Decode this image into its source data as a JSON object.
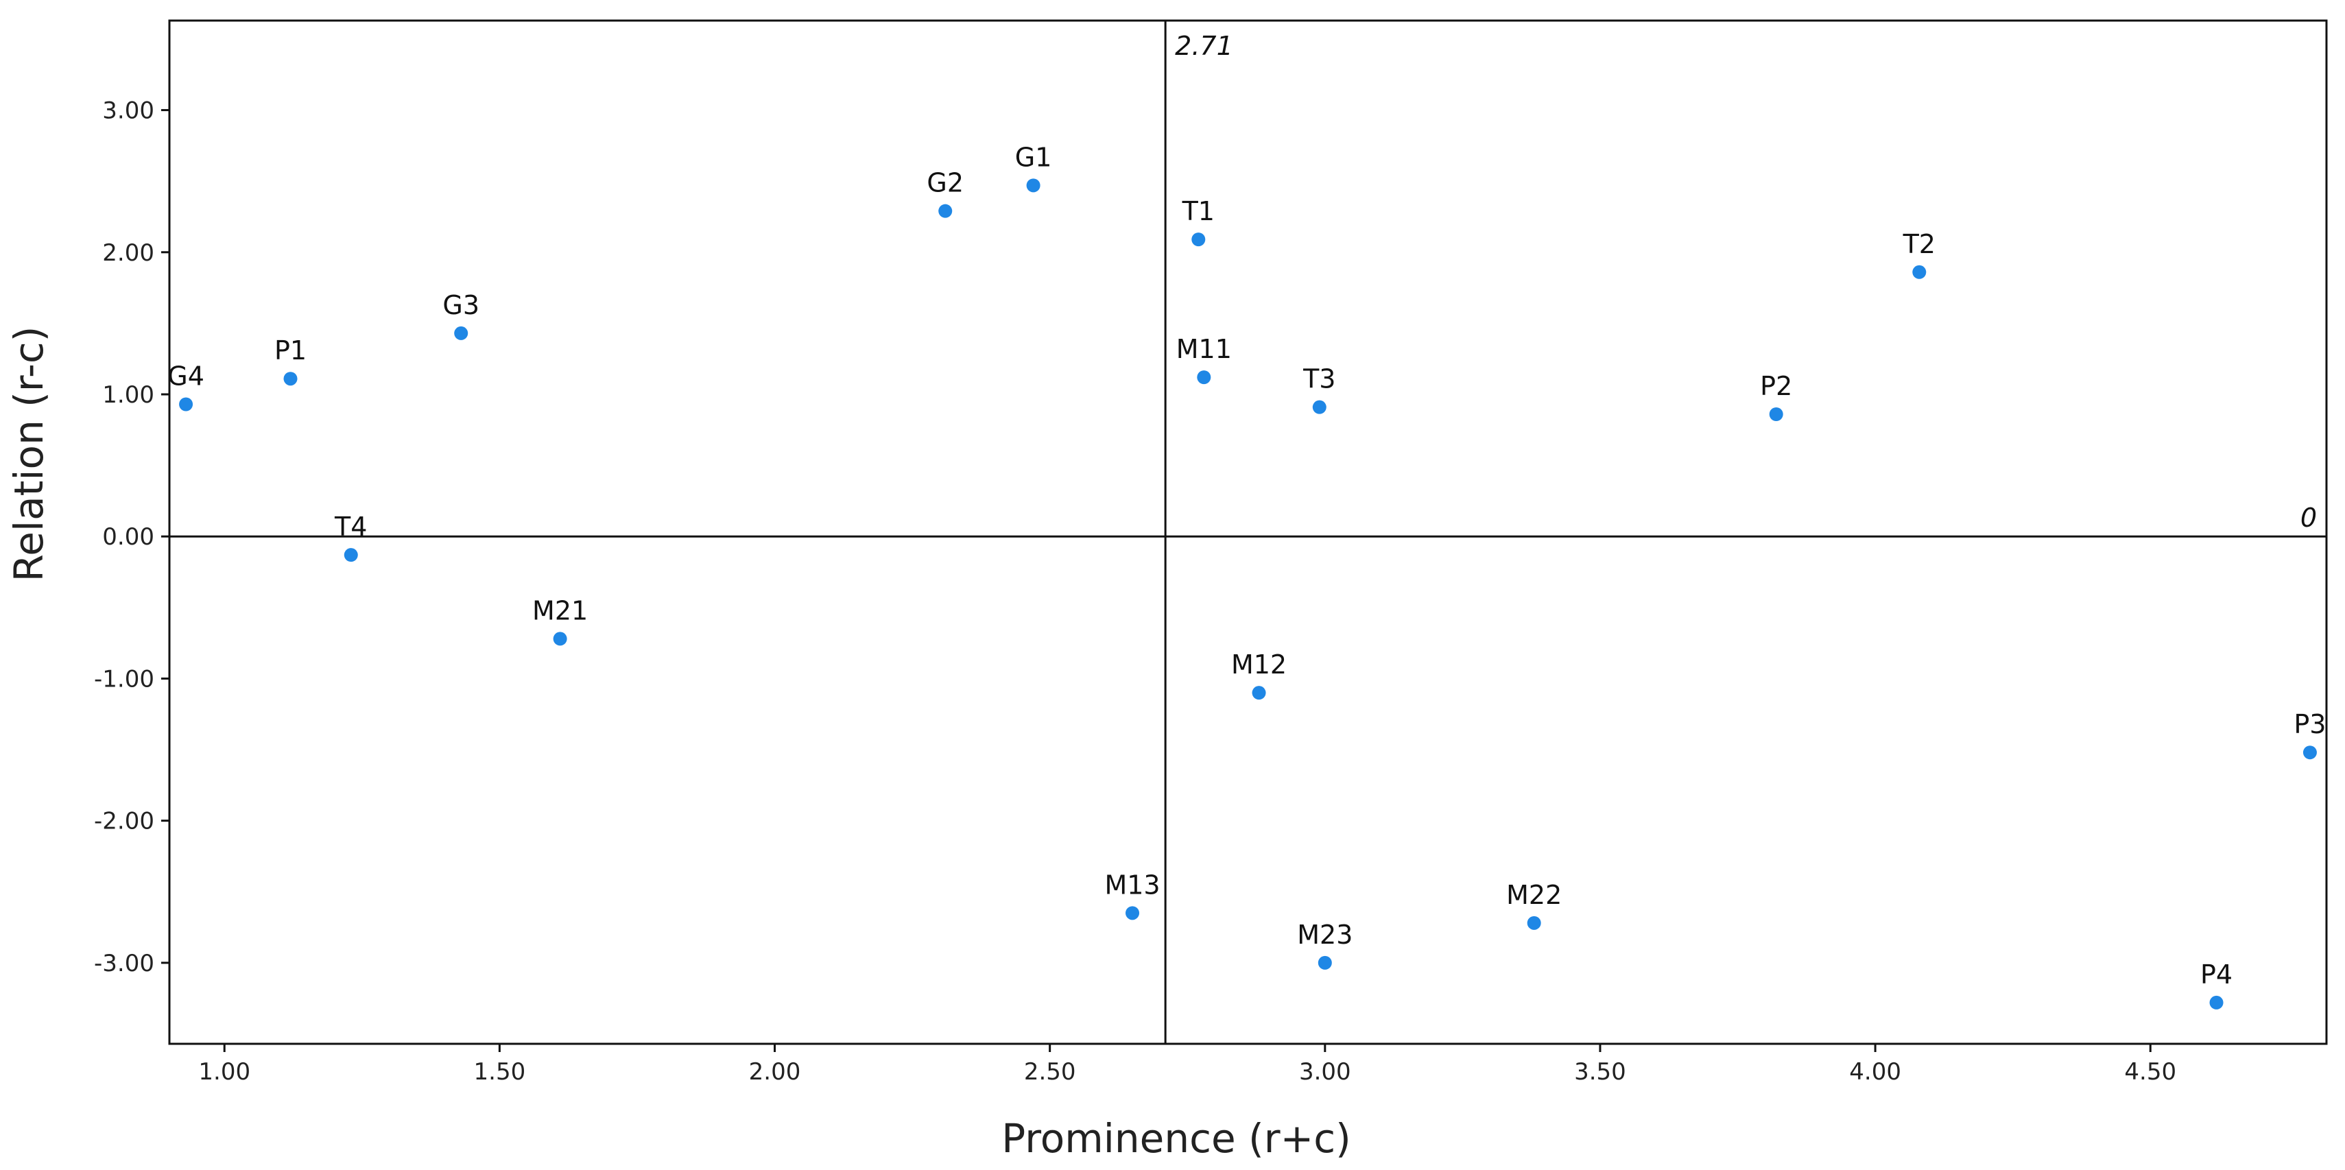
{
  "chart_data": {
    "type": "scatter",
    "title": "",
    "xlabel": "Prominence (r+c)",
    "ylabel": "Relation (r-c)",
    "xlim": [
      0.9,
      4.82
    ],
    "ylim": [
      -3.57,
      3.63
    ],
    "x_ticks": [
      "1.00",
      "1.50",
      "2.00",
      "2.50",
      "3.00",
      "3.50",
      "4.00",
      "4.50"
    ],
    "y_ticks": [
      "3.00",
      "2.00",
      "1.00",
      "0.00",
      "-1.00",
      "-2.00",
      "-3.00"
    ],
    "reference_lines": {
      "vertical": {
        "x": 2.71,
        "label": "2.71"
      },
      "horizontal": {
        "y": 0,
        "label": "0"
      }
    },
    "marker_color": "#1f87e5",
    "points": [
      {
        "label": "G1",
        "x": 2.47,
        "y": 2.47
      },
      {
        "label": "G2",
        "x": 2.31,
        "y": 2.29
      },
      {
        "label": "G3",
        "x": 1.43,
        "y": 1.43
      },
      {
        "label": "G4",
        "x": 0.93,
        "y": 0.93
      },
      {
        "label": "P1",
        "x": 1.12,
        "y": 1.11
      },
      {
        "label": "T1",
        "x": 2.77,
        "y": 2.09
      },
      {
        "label": "T2",
        "x": 4.08,
        "y": 1.86
      },
      {
        "label": "M11",
        "x": 2.78,
        "y": 1.12
      },
      {
        "label": "T3",
        "x": 2.99,
        "y": 0.91
      },
      {
        "label": "P2",
        "x": 3.82,
        "y": 0.86
      },
      {
        "label": "T4",
        "x": 1.23,
        "y": -0.13
      },
      {
        "label": "M21",
        "x": 1.61,
        "y": -0.72
      },
      {
        "label": "M12",
        "x": 2.88,
        "y": -1.1
      },
      {
        "label": "P3",
        "x": 4.79,
        "y": -1.52
      },
      {
        "label": "M13",
        "x": 2.65,
        "y": -2.65
      },
      {
        "label": "M22",
        "x": 3.38,
        "y": -2.72
      },
      {
        "label": "M23",
        "x": 3.0,
        "y": -3.0
      },
      {
        "label": "P4",
        "x": 4.62,
        "y": -3.28
      }
    ]
  }
}
